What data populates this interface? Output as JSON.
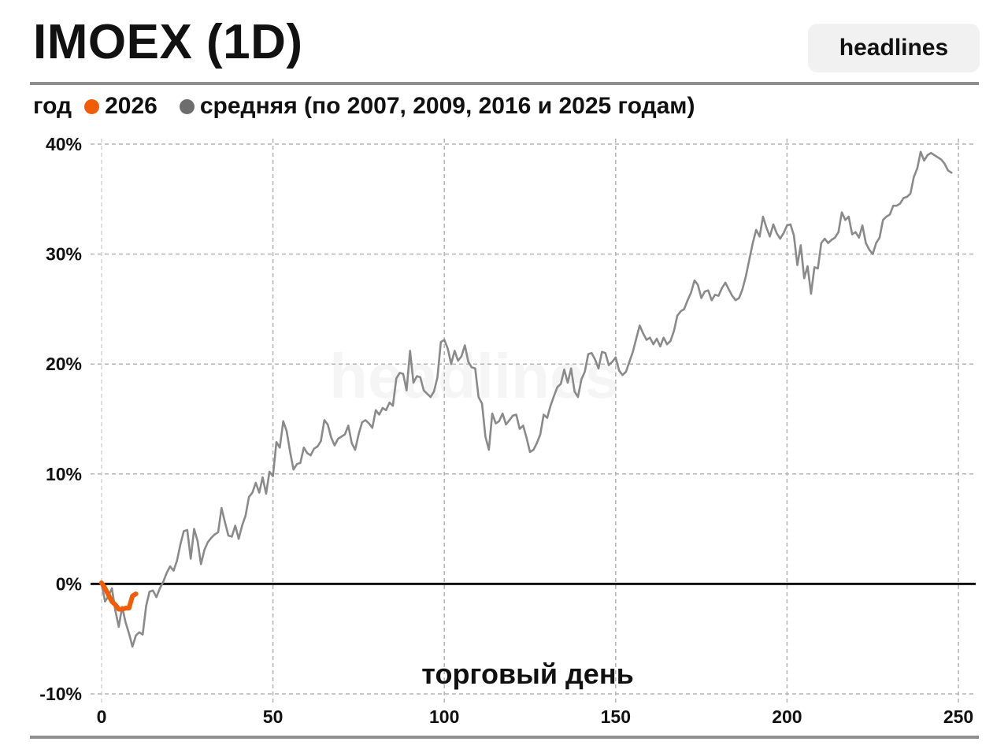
{
  "header": {
    "title": "IMOEX (1D)",
    "brand": "headlines"
  },
  "legend": {
    "prefix": "год",
    "items": [
      {
        "label": "2026",
        "color": "#f25c05"
      },
      {
        "label": "средняя (по 2007, 2009, 2016 и 2025 годам)",
        "color": "#6d6d6d"
      }
    ]
  },
  "chart_data": {
    "type": "line",
    "title": "IMOEX (1D)",
    "xlabel": "торговый день",
    "ylabel": "",
    "xlim": [
      0,
      250
    ],
    "ylim": [
      -10,
      40
    ],
    "x_ticks": [
      0,
      50,
      100,
      150,
      200,
      250
    ],
    "y_ticks": [
      {
        "value": 40,
        "label": "40%"
      },
      {
        "value": 30,
        "label": "30%"
      },
      {
        "value": 20,
        "label": "20%"
      },
      {
        "value": 10,
        "label": "10%"
      },
      {
        "value": 0,
        "label": "0%"
      },
      {
        "value": -10,
        "label": "-10%"
      }
    ],
    "grid": true,
    "zero_line": true,
    "legend_position": "top-left",
    "watermark": "headlines",
    "series": [
      {
        "name": "2026",
        "color": "#f25c05",
        "x": [
          0,
          1,
          2,
          3,
          4,
          5,
          6,
          7,
          8,
          9,
          10
        ],
        "y": [
          0.1,
          -0.4,
          -1.0,
          -1.6,
          -1.9,
          -2.3,
          -2.3,
          -2.2,
          -2.2,
          -1.1,
          -0.9
        ]
      },
      {
        "name": "средняя (по 2007, 2009, 2016 и 2025 годам)",
        "color": "#8a8a8a",
        "x": [
          0,
          1,
          2,
          3,
          4,
          5,
          6,
          7,
          8,
          9,
          10,
          11,
          12,
          13,
          14,
          15,
          16,
          17,
          18,
          19,
          20,
          21,
          22,
          23,
          24,
          25,
          26,
          27,
          28,
          29,
          30,
          31,
          32,
          33,
          34,
          35,
          36,
          37,
          38,
          39,
          40,
          41,
          42,
          43,
          44,
          45,
          46,
          47,
          48,
          49,
          50,
          51,
          52,
          53,
          54,
          55,
          56,
          57,
          58,
          59,
          60,
          61,
          62,
          63,
          64,
          65,
          66,
          67,
          68,
          69,
          70,
          71,
          72,
          73,
          74,
          75,
          76,
          77,
          78,
          79,
          80,
          81,
          82,
          83,
          84,
          85,
          86,
          87,
          88,
          89,
          90,
          91,
          92,
          93,
          94,
          95,
          96,
          97,
          98,
          99,
          100,
          101,
          102,
          103,
          104,
          105,
          106,
          107,
          108,
          109,
          110,
          111,
          112,
          113,
          114,
          115,
          116,
          117,
          118,
          119,
          120,
          121,
          122,
          123,
          124,
          125,
          126,
          127,
          128,
          129,
          130,
          131,
          132,
          133,
          134,
          135,
          136,
          137,
          138,
          139,
          140,
          141,
          142,
          143,
          144,
          145,
          146,
          147,
          148,
          149,
          150,
          151,
          152,
          153,
          154,
          155,
          156,
          157,
          158,
          159,
          160,
          161,
          162,
          163,
          164,
          165,
          166,
          167,
          168,
          169,
          170,
          171,
          172,
          173,
          174,
          175,
          176,
          177,
          178,
          179,
          180,
          181,
          182,
          183,
          184,
          185,
          186,
          187,
          188,
          189,
          190,
          191,
          192,
          193,
          194,
          195,
          196,
          197,
          198,
          199,
          200,
          201,
          202,
          203,
          204,
          205,
          206,
          207,
          208,
          209,
          210,
          211,
          212,
          213,
          214,
          215,
          216,
          217,
          218,
          219,
          220,
          221,
          222,
          223,
          224,
          225,
          226,
          227,
          228,
          229,
          230,
          231,
          232,
          233,
          234,
          235,
          236,
          237,
          238,
          239,
          240,
          241,
          242,
          243,
          244,
          245,
          246,
          247,
          248
        ],
        "y": [
          0,
          -1.6,
          -1.1,
          -0.4,
          -2.4,
          -3.9,
          -2.1,
          -3.5,
          -4.5,
          -5.7,
          -4.7,
          -4.4,
          -4.6,
          -2.0,
          -0.7,
          -0.6,
          -1.2,
          -0.4,
          0.2,
          1.0,
          1.6,
          1.2,
          2.1,
          3.6,
          4.8,
          4.9,
          2.3,
          5.0,
          3.9,
          1.8,
          3.1,
          3.8,
          4.2,
          4.5,
          4.7,
          6.9,
          5.6,
          4.4,
          4.3,
          5.3,
          4.1,
          5.3,
          6.2,
          7.9,
          8.3,
          9.2,
          8.3,
          9.7,
          8.2,
          10.2,
          9.8,
          12.9,
          12.4,
          14.8,
          13.9,
          12.0,
          10.4,
          10.9,
          11.0,
          12.4,
          11.9,
          11.7,
          12.3,
          12.5,
          13.0,
          14.9,
          14.5,
          13.3,
          12.6,
          13.2,
          13.4,
          13.6,
          14.4,
          12.8,
          12.2,
          13.6,
          14.7,
          14.9,
          14.6,
          14.2,
          15.8,
          15.4,
          16.0,
          15.8,
          16.5,
          16.2,
          18.7,
          19.2,
          19.1,
          17.6,
          21.2,
          18.3,
          18.9,
          18.8,
          17.6,
          17.3,
          17.0,
          17.5,
          18.8,
          22.0,
          22.2,
          21.4,
          20.0,
          21.2,
          20.3,
          20.7,
          21.7,
          20.2,
          19.7,
          19.6,
          17.0,
          16.4,
          13.4,
          12.2,
          15.5,
          14.6,
          14.8,
          15.5,
          14.5,
          14.9,
          15.3,
          15.4,
          14.1,
          14.4,
          13.3,
          12.0,
          12.2,
          12.8,
          13.6,
          15.4,
          15.1,
          16.2,
          17.1,
          17.9,
          18.2,
          19.5,
          18.3,
          19.6,
          17.5,
          17.0,
          18.6,
          19.3,
          20.9,
          21.0,
          20.4,
          19.6,
          21.1,
          21.0,
          19.9,
          20.2,
          20.6,
          19.4,
          19.0,
          19.3,
          20.2,
          21.1,
          22.3,
          23.5,
          22.8,
          22.2,
          22.4,
          21.8,
          22.3,
          21.6,
          22.4,
          21.8,
          22.1,
          23.0,
          24.4,
          24.8,
          25.0,
          25.8,
          26.5,
          27.6,
          27.2,
          26.0,
          26.6,
          26.7,
          25.8,
          26.3,
          26.2,
          26.9,
          27.4,
          26.8,
          26.2,
          25.8,
          26.0,
          26.8,
          28.0,
          29.5,
          31.0,
          32.2,
          31.6,
          33.4,
          32.4,
          31.6,
          32.7,
          31.9,
          31.4,
          31.9,
          32.6,
          32.7,
          31.7,
          29.0,
          30.8,
          27.8,
          28.9,
          26.4,
          28.8,
          28.7,
          31.0,
          31.4,
          31.0,
          31.3,
          31.5,
          32.0,
          33.8,
          33.1,
          33.4,
          31.8,
          32.0,
          31.5,
          32.6,
          31.0,
          30.4,
          30.0,
          31.0,
          31.5,
          33.1,
          33.4,
          33.6,
          34.4,
          34.4,
          34.6,
          35.1,
          35.2,
          35.5,
          37.0,
          37.8,
          39.3,
          38.5,
          39.0,
          39.2,
          39.0,
          38.8,
          38.6,
          38.2,
          37.6,
          37.4
        ]
      }
    ]
  }
}
